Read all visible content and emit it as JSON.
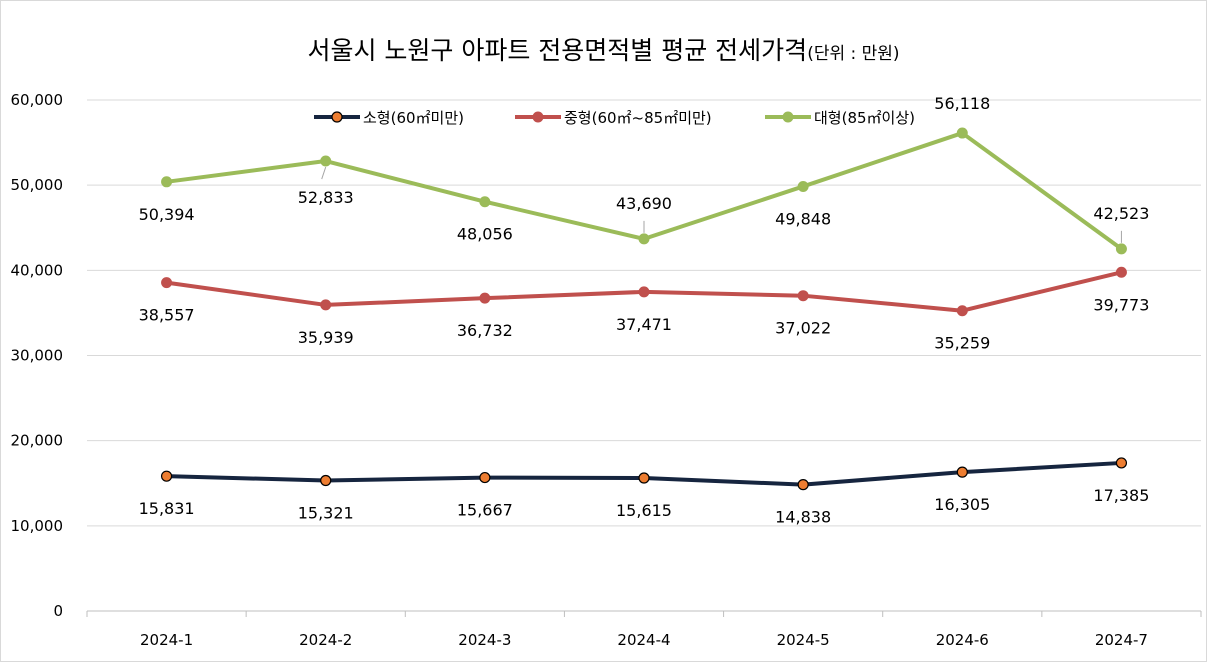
{
  "chart_data": {
    "type": "line",
    "title": "서울시 노원구 아파트 전용면적별 평균 전세가격",
    "subtitle": "(단위 : 만원)",
    "categories": [
      "2024-1",
      "2024-2",
      "2024-3",
      "2024-4",
      "2024-5",
      "2024-6",
      "2024-7"
    ],
    "ylim": [
      0,
      60000
    ],
    "yticks": [
      "0",
      "10,000",
      "20,000",
      "30,000",
      "40,000",
      "50,000",
      "60,000"
    ],
    "grid": true,
    "legend_position": "top",
    "series": [
      {
        "name": "소형(60㎡미만)",
        "color": "#16253f",
        "marker_color": "#ed7d31",
        "values": [
          15831,
          15321,
          15667,
          15615,
          14838,
          16305,
          17385
        ],
        "labels": [
          "15,831",
          "15,321",
          "15,667",
          "15,615",
          "14,838",
          "16,305",
          "17,385"
        ]
      },
      {
        "name": "중형(60㎡~85㎡미만)",
        "color": "#c0504d",
        "marker_color": "#c0504d",
        "values": [
          38557,
          35939,
          36732,
          37471,
          37022,
          35259,
          39773
        ],
        "labels": [
          "38,557",
          "35,939",
          "36,732",
          "37,471",
          "37,022",
          "35,259",
          "39,773"
        ]
      },
      {
        "name": "대형(85㎡이상)",
        "color": "#9bbb59",
        "marker_color": "#9bbb59",
        "values": [
          50394,
          52833,
          48056,
          43690,
          49848,
          56118,
          42523
        ],
        "labels": [
          "50,394",
          "52,833",
          "48,056",
          "43,690",
          "49,848",
          "56,118",
          "42,523"
        ]
      }
    ]
  }
}
